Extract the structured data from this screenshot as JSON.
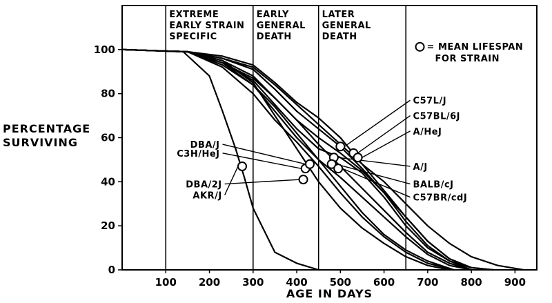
{
  "chart_data": {
    "type": "line",
    "title": "",
    "xlabel": "AGE IN DAYS",
    "ylabel_lines": [
      "PERCENTAGE",
      "SURVIVING"
    ],
    "xlim": [
      0,
      950
    ],
    "ylim": [
      0,
      120
    ],
    "xticks": [
      100,
      200,
      300,
      400,
      500,
      600,
      700,
      800,
      900
    ],
    "yticks": [
      0,
      20,
      40,
      60,
      80,
      100
    ],
    "grid": false,
    "phase_boundaries_days": [
      100,
      300,
      450,
      650
    ],
    "phases": [
      {
        "lines": [
          "EXTREME",
          "EARLY STRAIN",
          "SPECIFIC"
        ]
      },
      {
        "lines": [
          "EARLY",
          "GENERAL",
          "DEATH"
        ]
      },
      {
        "lines": [
          "LATER",
          "GENERAL",
          "DEATH"
        ]
      }
    ],
    "legend": {
      "text_lines": [
        "= MEAN LIFESPAN",
        "FOR STRAIN"
      ],
      "placement": "top-right"
    },
    "series": [
      {
        "name": "AKR/J",
        "label_side": "left",
        "label_y": 34,
        "points": [
          [
            0,
            100
          ],
          [
            140,
            99
          ],
          [
            200,
            88
          ],
          [
            230,
            72
          ],
          [
            260,
            55
          ],
          [
            280,
            42
          ],
          [
            300,
            28
          ],
          [
            350,
            8
          ],
          [
            400,
            3
          ],
          [
            450,
            0
          ]
        ],
        "mean": [
          275,
          47
        ]
      },
      {
        "name": "DBA/2J",
        "label_side": "left",
        "label_y": 39,
        "points": [
          [
            0,
            100
          ],
          [
            150,
            99
          ],
          [
            230,
            95
          ],
          [
            300,
            85
          ],
          [
            350,
            70
          ],
          [
            400,
            55
          ],
          [
            450,
            40
          ],
          [
            500,
            28
          ],
          [
            550,
            19
          ],
          [
            600,
            12
          ],
          [
            650,
            6
          ],
          [
            700,
            2
          ],
          [
            750,
            0
          ]
        ],
        "mean": [
          415,
          41
        ]
      },
      {
        "name": "C3H/HeJ",
        "label_side": "left",
        "label_y": 53,
        "points": [
          [
            0,
            100
          ],
          [
            150,
            99
          ],
          [
            230,
            94
          ],
          [
            300,
            84
          ],
          [
            350,
            74
          ],
          [
            400,
            62
          ],
          [
            450,
            50
          ],
          [
            500,
            38
          ],
          [
            550,
            26
          ],
          [
            600,
            16
          ],
          [
            650,
            9
          ],
          [
            700,
            4
          ],
          [
            760,
            0
          ]
        ],
        "mean": [
          420,
          46
        ]
      },
      {
        "name": "DBA/J",
        "label_side": "left",
        "label_y": 57,
        "points": [
          [
            0,
            100
          ],
          [
            150,
            99
          ],
          [
            230,
            92
          ],
          [
            300,
            80
          ],
          [
            350,
            68
          ],
          [
            400,
            58
          ],
          [
            450,
            47
          ],
          [
            500,
            35
          ],
          [
            550,
            24
          ],
          [
            600,
            15
          ],
          [
            650,
            8
          ],
          [
            700,
            3
          ],
          [
            760,
            0
          ]
        ],
        "mean": [
          430,
          48
        ]
      },
      {
        "name": "C57L/J",
        "label_side": "right",
        "label_y": 77,
        "points": [
          [
            0,
            100
          ],
          [
            150,
            99
          ],
          [
            230,
            97
          ],
          [
            300,
            93
          ],
          [
            350,
            85
          ],
          [
            400,
            76
          ],
          [
            450,
            69
          ],
          [
            500,
            60
          ],
          [
            550,
            48
          ],
          [
            600,
            36
          ],
          [
            650,
            24
          ],
          [
            700,
            13
          ],
          [
            750,
            5
          ],
          [
            800,
            1
          ],
          [
            850,
            0
          ]
        ],
        "mean": [
          500,
          56
        ]
      },
      {
        "name": "C57BL/6J",
        "label_side": "right",
        "label_y": 70,
        "points": [
          [
            0,
            100
          ],
          [
            150,
            99
          ],
          [
            230,
            96
          ],
          [
            300,
            91
          ],
          [
            350,
            82
          ],
          [
            400,
            72
          ],
          [
            450,
            64
          ],
          [
            500,
            56
          ],
          [
            550,
            46
          ],
          [
            600,
            35
          ],
          [
            650,
            22
          ],
          [
            700,
            11
          ],
          [
            750,
            4
          ],
          [
            800,
            1
          ],
          [
            850,
            0
          ]
        ],
        "mean": [
          530,
          53
        ]
      },
      {
        "name": "A/HeJ",
        "label_side": "right",
        "label_y": 63,
        "points": [
          [
            0,
            100
          ],
          [
            150,
            99
          ],
          [
            230,
            95
          ],
          [
            300,
            88
          ],
          [
            350,
            78
          ],
          [
            400,
            68
          ],
          [
            450,
            60
          ],
          [
            500,
            53
          ],
          [
            550,
            45
          ],
          [
            600,
            35
          ],
          [
            650,
            24
          ],
          [
            700,
            13
          ],
          [
            750,
            5
          ],
          [
            800,
            1
          ],
          [
            850,
            0
          ]
        ],
        "mean": [
          540,
          51
        ]
      },
      {
        "name": "A/J",
        "label_side": "right",
        "label_y": 47,
        "points": [
          [
            0,
            100
          ],
          [
            150,
            99
          ],
          [
            230,
            94
          ],
          [
            300,
            86
          ],
          [
            350,
            75
          ],
          [
            400,
            64
          ],
          [
            450,
            55
          ],
          [
            500,
            51
          ],
          [
            550,
            44
          ],
          [
            600,
            33
          ],
          [
            650,
            20
          ],
          [
            700,
            10
          ],
          [
            750,
            4
          ],
          [
            800,
            0
          ]
        ],
        "mean": [
          485,
          51
        ]
      },
      {
        "name": "BALB/cJ",
        "label_side": "right",
        "label_y": 39,
        "points": [
          [
            0,
            100
          ],
          [
            150,
            99
          ],
          [
            230,
            93
          ],
          [
            300,
            84
          ],
          [
            350,
            72
          ],
          [
            400,
            60
          ],
          [
            450,
            50
          ],
          [
            500,
            42
          ],
          [
            550,
            33
          ],
          [
            600,
            24
          ],
          [
            650,
            15
          ],
          [
            700,
            7
          ],
          [
            750,
            2
          ],
          [
            800,
            0
          ]
        ],
        "mean": [
          480,
          48
        ]
      },
      {
        "name": "C57BR/cdJ",
        "label_side": "right",
        "label_y": 33,
        "points": [
          [
            0,
            100
          ],
          [
            150,
            99
          ],
          [
            230,
            94
          ],
          [
            300,
            87
          ],
          [
            350,
            78
          ],
          [
            400,
            68
          ],
          [
            450,
            57
          ],
          [
            500,
            47
          ],
          [
            550,
            37
          ],
          [
            600,
            27
          ],
          [
            650,
            17
          ],
          [
            700,
            8
          ],
          [
            750,
            3
          ],
          [
            800,
            0
          ]
        ],
        "mean": [
          495,
          46
        ]
      },
      {
        "points": [
          [
            0,
            100
          ],
          [
            150,
            99
          ],
          [
            230,
            96
          ],
          [
            300,
            92
          ],
          [
            350,
            84
          ],
          [
            400,
            75
          ],
          [
            450,
            66
          ],
          [
            500,
            57
          ],
          [
            550,
            48
          ],
          [
            600,
            40
          ],
          [
            650,
            30
          ],
          [
            700,
            20
          ],
          [
            750,
            12
          ],
          [
            800,
            6
          ],
          [
            860,
            2
          ],
          [
            920,
            0
          ]
        ]
      }
    ]
  }
}
